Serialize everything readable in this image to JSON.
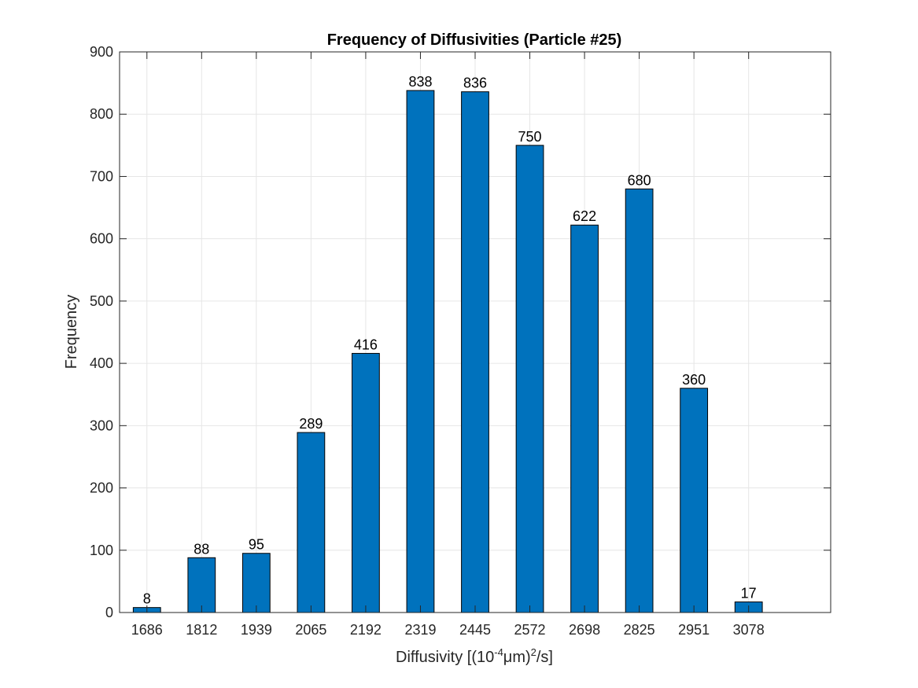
{
  "chart_data": {
    "type": "bar",
    "title": "Frequency of Diffusivities (Particle #25)",
    "xlabel": {
      "prefix": "Diffusivity [(10",
      "exponent": "-4",
      "middle": "μm)",
      "exponent2": "2",
      "suffix": "/s]"
    },
    "ylabel": "Frequency",
    "categories": [
      "1686",
      "1812",
      "1939",
      "2065",
      "2192",
      "2319",
      "2445",
      "2572",
      "2698",
      "2825",
      "2951",
      "3078"
    ],
    "values": [
      8,
      88,
      95,
      289,
      416,
      838,
      836,
      750,
      622,
      680,
      360,
      17
    ],
    "data_labels": [
      "8",
      "88",
      "95",
      "289",
      "416",
      "838",
      "836",
      "750",
      "622",
      "680",
      "360",
      "17"
    ],
    "ylim": [
      0,
      900
    ],
    "yticks": [
      0,
      100,
      200,
      300,
      400,
      500,
      600,
      700,
      800,
      900
    ],
    "ytick_labels": [
      "0",
      "100",
      "200",
      "300",
      "400",
      "500",
      "600",
      "700",
      "800",
      "900"
    ],
    "grid": true,
    "legend": "none",
    "colors": {
      "bar": "#0072BD",
      "bar_edge": "#000000",
      "grid": "#e6e6e6",
      "axis": "#262626"
    }
  }
}
